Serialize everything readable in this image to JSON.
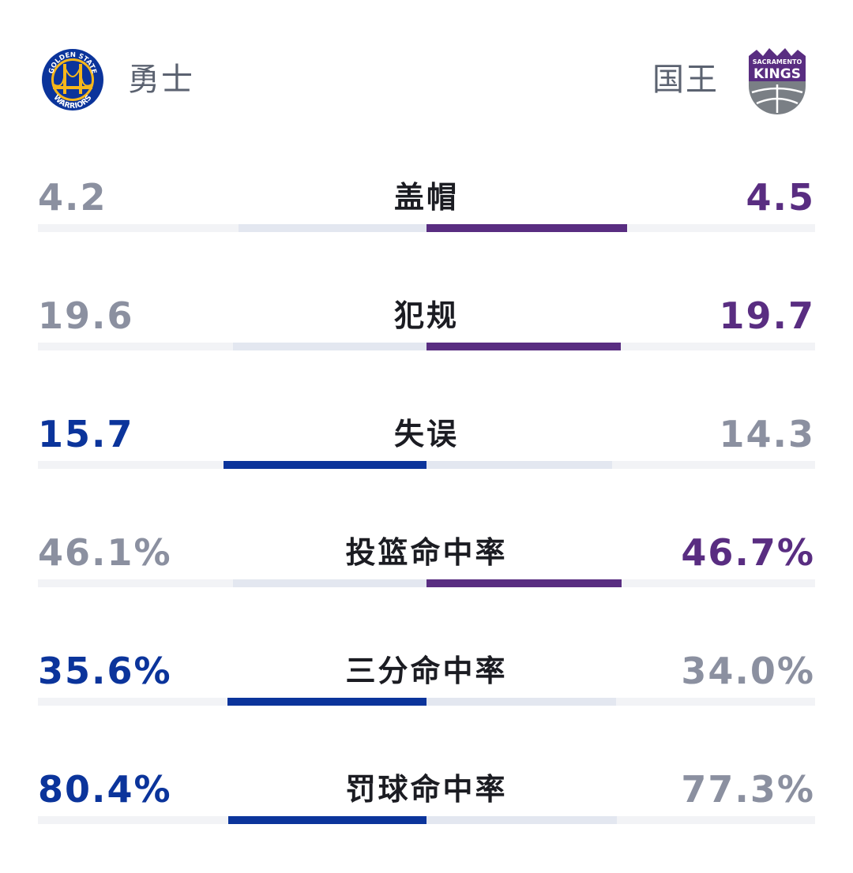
{
  "teams": {
    "home": {
      "name": "勇士",
      "logo_text_top": "GOLDEN STATE",
      "logo_text_bottom": "WARRIORS",
      "color": "#0b349b",
      "accent": "#f6b71b"
    },
    "away": {
      "name": "国王",
      "logo_text_top": "SACRAMENTO",
      "logo_text_bottom": "KINGS",
      "color": "#592d81",
      "accent": "#7a7f85"
    }
  },
  "colors": {
    "neutral_value": "#8b90a0",
    "label": "#1b1c22",
    "track": "#f2f3f6",
    "track_inner": "#e3e7f0"
  },
  "stats": [
    {
      "label": "盖帽",
      "home": "4.2",
      "away": "4.5",
      "leader": "away",
      "home_share": 0.483,
      "away_share": 0.517
    },
    {
      "label": "犯规",
      "home": "19.6",
      "away": "19.7",
      "leader": "away",
      "home_share": 0.499,
      "away_share": 0.501
    },
    {
      "label": "失误",
      "home": "15.7",
      "away": "14.3",
      "leader": "home",
      "home_share": 0.523,
      "away_share": 0.477
    },
    {
      "label": "投篮命中率",
      "home": "46.1%",
      "away": "46.7%",
      "leader": "away",
      "home_share": 0.497,
      "away_share": 0.503
    },
    {
      "label": "三分命中率",
      "home": "35.6%",
      "away": "34.0%",
      "leader": "home",
      "home_share": 0.512,
      "away_share": 0.488
    },
    {
      "label": "罚球命中率",
      "home": "80.4%",
      "away": "77.3%",
      "leader": "home",
      "home_share": 0.51,
      "away_share": 0.49
    }
  ]
}
